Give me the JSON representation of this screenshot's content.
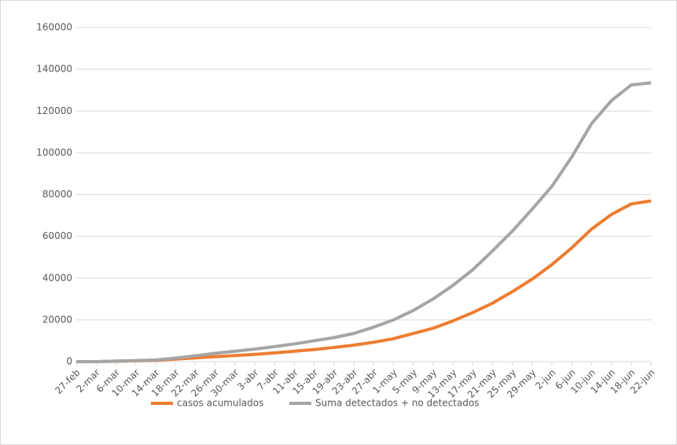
{
  "chart_data": {
    "type": "line",
    "categories": [
      "27-feb",
      "2-mar",
      "6-mar",
      "10-mar",
      "14-mar",
      "18-mar",
      "22-mar",
      "26-mar",
      "30-mar",
      "3-abr",
      "7-abr",
      "11-abr",
      "15-abr",
      "19-abr",
      "23-abr",
      "27-abr",
      "1-may",
      "5-may",
      "9-may",
      "13-may",
      "17-may",
      "21-may",
      "25-may",
      "29-may",
      "2-jun",
      "6-jun",
      "10-jun",
      "14-jun",
      "18-jun",
      "22-jun"
    ],
    "series": [
      {
        "name": "casos acumulados",
        "color": "#ed7d31",
        "values": [
          0,
          0,
          200,
          400,
          600,
          1200,
          1800,
          2400,
          2900,
          3500,
          4200,
          5000,
          5800,
          6800,
          7900,
          9300,
          11000,
          13500,
          16000,
          19500,
          23500,
          28000,
          33500,
          39500,
          46500,
          54500,
          63500,
          70500,
          75500,
          77000
        ]
      },
      {
        "name": "Suma detectados + no detectados",
        "color": "#a5a5a5",
        "values": [
          0,
          0,
          300,
          500,
          800,
          1700,
          2800,
          4000,
          5000,
          6000,
          7200,
          8500,
          10000,
          11500,
          13500,
          16500,
          20000,
          24500,
          30000,
          36500,
          44000,
          53000,
          62500,
          73000,
          84000,
          98000,
          114000,
          125000,
          132500,
          133500
        ]
      }
    ],
    "ylim": [
      0,
      160000
    ],
    "yticks": [
      0,
      20000,
      40000,
      60000,
      80000,
      100000,
      120000,
      140000,
      160000
    ],
    "grid": true,
    "legend": "bottom"
  }
}
